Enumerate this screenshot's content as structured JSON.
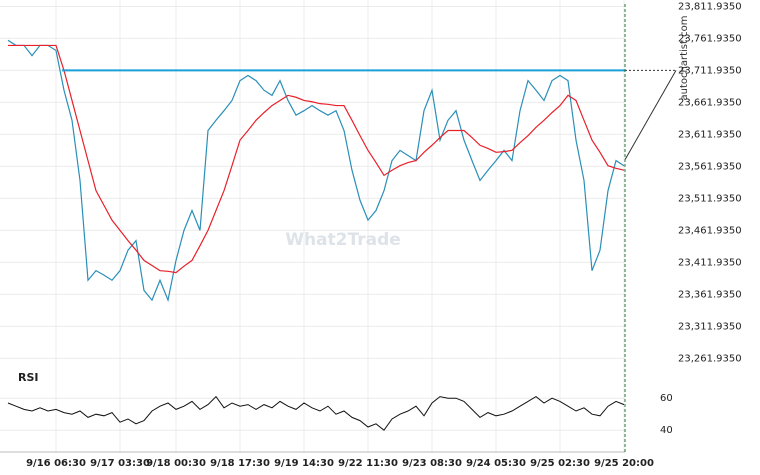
{
  "chart_data": [
    {
      "type": "line",
      "watermark": "What2Trade",
      "source": "autochartist.com",
      "level": 23711.935,
      "level_color": "#1a9fd9",
      "ylim": [
        23250,
        23822
      ],
      "yticks": [
        {
          "value": 23811.935,
          "label": "23,811.9350"
        },
        {
          "value": 23761.935,
          "label": "23,761.9350"
        },
        {
          "value": 23711.935,
          "label": "23,711.9350"
        },
        {
          "value": 23661.935,
          "label": "23,661.9350"
        },
        {
          "value": 23611.935,
          "label": "23,611.9350"
        },
        {
          "value": 23561.935,
          "label": "23,561.9350"
        },
        {
          "value": 23511.935,
          "label": "23,511.9350"
        },
        {
          "value": 23461.935,
          "label": "23,461.9350"
        },
        {
          "value": 23411.935,
          "label": "23,411.9350"
        },
        {
          "value": 23361.935,
          "label": "23,361.9350"
        },
        {
          "value": 23311.935,
          "label": "23,311.9350"
        },
        {
          "value": 23261.935,
          "label": "23,261.9350"
        }
      ],
      "grid": true,
      "series": [
        {
          "color": "#2a8fb8",
          "values": [
            23759,
            23751,
            23751,
            23735,
            23751,
            23751,
            23743,
            23681,
            23634,
            23540,
            23384,
            23399,
            23392,
            23384,
            23399,
            23431,
            23446,
            23368,
            23353,
            23384,
            23353,
            23415,
            23462,
            23493,
            23462,
            23618,
            23634,
            23649,
            23665,
            23696,
            23704,
            23696,
            23681,
            23673,
            23696,
            23665,
            23642,
            23649,
            23657,
            23649,
            23642,
            23649,
            23618,
            23556,
            23509,
            23478,
            23493,
            23524,
            23571,
            23587,
            23579,
            23571,
            23649,
            23681,
            23603,
            23634,
            23649,
            23603,
            23571,
            23540,
            23556,
            23571,
            23587,
            23571,
            23649,
            23696,
            23681,
            23665,
            23696,
            23704,
            23696,
            23603,
            23540,
            23399,
            23431,
            23524,
            23571,
            23563
          ]
        },
        {
          "color": "#e8202a",
          "values": [
            23751,
            23751,
            23751,
            23751,
            23751,
            23751,
            23751,
            23712,
            23665,
            23618,
            23571,
            23524,
            23501,
            23478,
            23462,
            23446,
            23431,
            23415,
            23407,
            23399,
            23398,
            23396,
            23406,
            23415,
            23438,
            23462,
            23493,
            23524,
            23563,
            23603,
            23618,
            23634,
            23646,
            23657,
            23665,
            23673,
            23670,
            23665,
            23663,
            23660,
            23659,
            23657,
            23657,
            23634,
            23610,
            23587,
            23568,
            23548,
            23556,
            23563,
            23568,
            23571,
            23584,
            23595,
            23607,
            23618,
            23618,
            23618,
            23607,
            23595,
            23590,
            23584,
            23585,
            23587,
            23599,
            23610,
            23623,
            23634,
            23646,
            23657,
            23673,
            23665,
            23634,
            23603,
            23584,
            23563,
            23559,
            23556
          ]
        }
      ]
    },
    {
      "type": "line",
      "title": "RSI",
      "ylim": [
        28,
        67
      ],
      "yticks": [
        60,
        40
      ],
      "color": "#111111",
      "categories": [
        null,
        null,
        null,
        null,
        null,
        null,
        "9/16 06:30",
        null,
        null,
        null,
        null,
        null,
        null,
        null,
        "9/17 03:30",
        null,
        null,
        null,
        null,
        null,
        null,
        "9/18 00:30",
        null,
        null,
        null,
        null,
        null,
        null,
        null,
        "9/18 17:30",
        null,
        null,
        null,
        null,
        null,
        null,
        null,
        "9/19 14:30",
        null,
        null,
        null,
        null,
        null,
        null,
        null,
        "9/22 11:30",
        null,
        null,
        null,
        null,
        null,
        null,
        null,
        "9/23 08:30",
        null,
        null,
        null,
        null,
        null,
        null,
        null,
        "9/24 05:30",
        null,
        null,
        null,
        null,
        null,
        null,
        null,
        "9/25 02:30",
        null,
        null,
        null,
        null,
        null,
        null,
        null,
        "9/25 20:00"
      ],
      "values": [
        57,
        55,
        53,
        52,
        54,
        52,
        53,
        51,
        50,
        52,
        48,
        50,
        49,
        51,
        45,
        47,
        44,
        46,
        52,
        55,
        57,
        53,
        55,
        58,
        53,
        56,
        61,
        54,
        57,
        55,
        56,
        53,
        56,
        54,
        58,
        55,
        53,
        57,
        54,
        52,
        55,
        50,
        52,
        48,
        46,
        42,
        44,
        40,
        47,
        50,
        52,
        55,
        49,
        57,
        61,
        60,
        60,
        58,
        53,
        48,
        51,
        49,
        50,
        52,
        55,
        58,
        61,
        57,
        60,
        58,
        55,
        52,
        54,
        50,
        49,
        55,
        58,
        56
      ]
    }
  ]
}
